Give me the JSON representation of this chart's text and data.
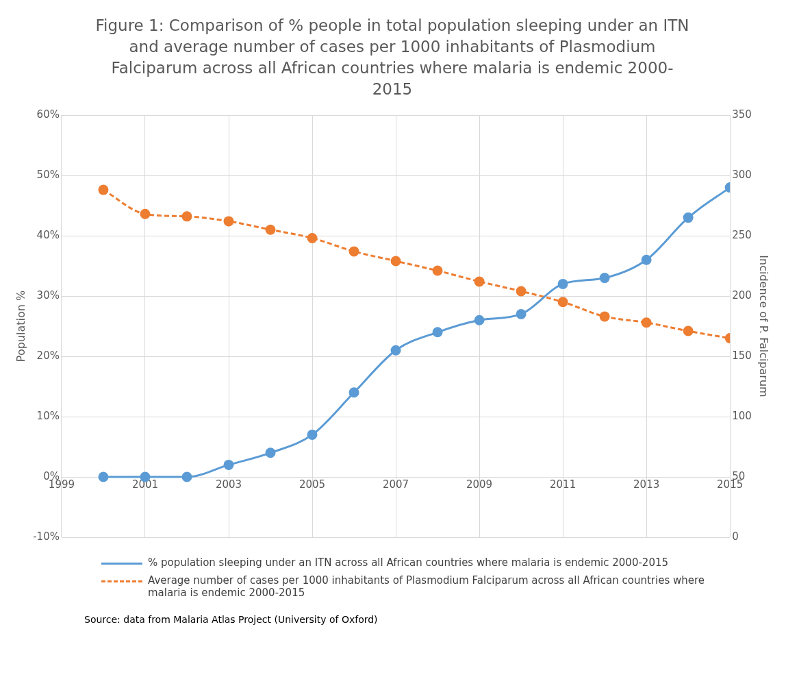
{
  "chart_data": {
    "type": "line",
    "title": "Figure 1: Comparison of % people in total population sleeping under an ITN and average number of cases per 1000 inhabitants of Plasmodium Falciparum across all African countries where malaria is endemic 2000-2015",
    "ylabel": "Population %",
    "y2label": "Incidence of P. Falciparum",
    "x": [
      2000,
      2001,
      2002,
      2003,
      2004,
      2005,
      2006,
      2007,
      2008,
      2009,
      2010,
      2011,
      2012,
      2013,
      2014,
      2015
    ],
    "xlim": [
      1999,
      2015
    ],
    "xticks": [
      1999,
      2001,
      2003,
      2005,
      2007,
      2009,
      2011,
      2013,
      2015
    ],
    "ylim": [
      -10,
      60
    ],
    "yticks": [
      {
        "value": -10,
        "label": "-10%"
      },
      {
        "value": 0,
        "label": "0%"
      },
      {
        "value": 10,
        "label": "10%"
      },
      {
        "value": 20,
        "label": "20%"
      },
      {
        "value": 30,
        "label": "30%"
      },
      {
        "value": 40,
        "label": "40%"
      },
      {
        "value": 50,
        "label": "50%"
      },
      {
        "value": 60,
        "label": "60%"
      }
    ],
    "y2lim": [
      0,
      350
    ],
    "y2ticks": [
      0,
      50,
      100,
      150,
      200,
      250,
      300,
      350
    ],
    "series": [
      {
        "name": "% population sleeping under an ITN across all African countries where malaria is endemic 2000-2015",
        "color": "#5b9bd5",
        "line_style": "solid",
        "values": [
          0,
          0,
          0,
          2,
          4,
          7,
          14,
          21,
          24,
          26,
          27,
          32,
          33,
          36,
          43,
          48
        ]
      },
      {
        "name": "Average number of cases per 1000 inhabitants of Plasmodium Falciparum across all African countries where malaria is endemic 2000-2015",
        "color": "#ed7d31",
        "line_style": "dashed",
        "axis": "y2",
        "values": [
          288,
          268,
          266,
          262,
          255,
          248,
          237,
          229,
          221,
          212,
          204,
          195,
          183,
          178,
          171,
          165
        ]
      }
    ],
    "marker": "circle",
    "grid": true,
    "legend": "bottom",
    "annotations": [
      "Source: data from Malaria Atlas Project (University of Oxford)"
    ]
  }
}
